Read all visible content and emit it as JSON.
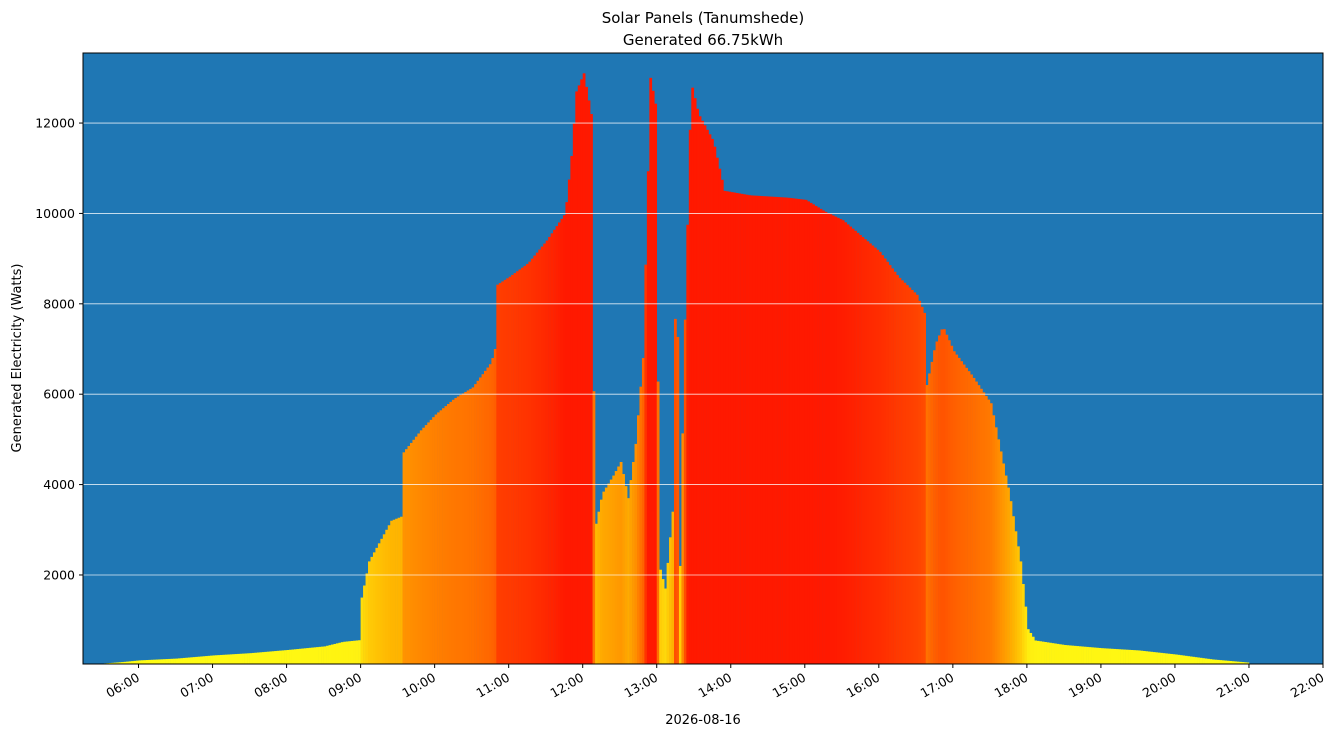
{
  "chart_data": {
    "type": "bar",
    "title": "Solar Panels (Tanumshede)",
    "subtitle": "Generated 66.75kWh",
    "xlabel": "2026-08-16",
    "ylabel": "Generated Electricity (Watts)",
    "ylim": [
      30,
      13550
    ],
    "y_ticks": [
      2000,
      4000,
      6000,
      8000,
      10000,
      12000
    ],
    "x_ticks": [
      "06:00",
      "07:00",
      "08:00",
      "09:00",
      "10:00",
      "11:00",
      "12:00",
      "13:00",
      "14:00",
      "15:00",
      "16:00",
      "17:00",
      "18:00",
      "19:00",
      "20:00",
      "21:00",
      "22:00"
    ],
    "xlim_hours": [
      5.25,
      22.0
    ],
    "grid": "horizontal",
    "legend": "none",
    "colors": {
      "background": "#1f77b4",
      "low": "#ffff00",
      "high": "#ff0000",
      "grid": "#ffffff"
    },
    "profile": [
      [
        5.5,
        40
      ],
      [
        5.75,
        70
      ],
      [
        6.0,
        110
      ],
      [
        6.5,
        150
      ],
      [
        7.0,
        220
      ],
      [
        7.5,
        270
      ],
      [
        8.0,
        340
      ],
      [
        8.5,
        420
      ],
      [
        8.75,
        520
      ],
      [
        8.99,
        560
      ],
      [
        9.0,
        1500
      ],
      [
        9.1,
        2300
      ],
      [
        9.25,
        2750
      ],
      [
        9.4,
        3200
      ],
      [
        9.55,
        3300
      ],
      [
        9.56,
        4700
      ],
      [
        9.8,
        5200
      ],
      [
        10.0,
        5550
      ],
      [
        10.25,
        5900
      ],
      [
        10.5,
        6150
      ],
      [
        10.75,
        6700
      ],
      [
        10.8,
        7000
      ],
      [
        10.81,
        8400
      ],
      [
        11.0,
        8600
      ],
      [
        11.25,
        8900
      ],
      [
        11.5,
        9400
      ],
      [
        11.75,
        10000
      ],
      [
        11.83,
        11200
      ],
      [
        11.9,
        12700
      ],
      [
        12.0,
        13100
      ],
      [
        12.1,
        12200
      ],
      [
        12.15,
        3000
      ],
      [
        12.25,
        3800
      ],
      [
        12.4,
        4200
      ],
      [
        12.5,
        4500
      ],
      [
        12.6,
        3700
      ],
      [
        12.7,
        4900
      ],
      [
        12.8,
        6800
      ],
      [
        12.9,
        13000
      ],
      [
        12.97,
        12400
      ],
      [
        13.02,
        2200
      ],
      [
        13.1,
        1700
      ],
      [
        13.2,
        3400
      ],
      [
        13.25,
        9800
      ],
      [
        13.3,
        2200
      ],
      [
        13.35,
        6600
      ],
      [
        13.45,
        12900
      ],
      [
        13.55,
        12200
      ],
      [
        13.75,
        11600
      ],
      [
        13.9,
        10500
      ],
      [
        14.25,
        10400
      ],
      [
        14.75,
        10350
      ],
      [
        15.0,
        10300
      ],
      [
        15.25,
        10050
      ],
      [
        15.5,
        9850
      ],
      [
        15.75,
        9500
      ],
      [
        16.0,
        9150
      ],
      [
        16.25,
        8600
      ],
      [
        16.5,
        8200
      ],
      [
        16.6,
        7800
      ],
      [
        16.62,
        6100
      ],
      [
        16.75,
        7100
      ],
      [
        16.85,
        7500
      ],
      [
        17.0,
        6950
      ],
      [
        17.25,
        6400
      ],
      [
        17.5,
        5800
      ],
      [
        17.75,
        3800
      ],
      [
        17.9,
        2300
      ],
      [
        18.0,
        800
      ],
      [
        18.1,
        550
      ],
      [
        18.5,
        450
      ],
      [
        19.0,
        380
      ],
      [
        19.5,
        330
      ],
      [
        20.0,
        240
      ],
      [
        20.5,
        130
      ],
      [
        20.99,
        60
      ]
    ]
  }
}
